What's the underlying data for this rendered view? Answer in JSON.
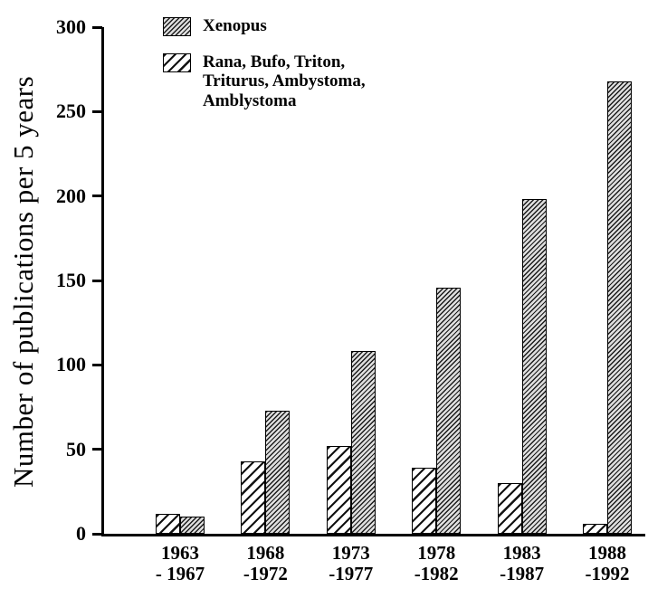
{
  "figure": {
    "y_axis_title": "Number of publications per 5 years"
  },
  "legend": {
    "xenopus_label": "Xenopus",
    "rana_lines": [
      "Rana, Bufo, Triton,",
      "Triturus, Ambystoma,",
      "Amblystoma"
    ]
  },
  "chart_data": {
    "type": "bar",
    "title": "",
    "xlabel": "",
    "ylabel": "Number of publications per 5 years",
    "ylim": [
      0,
      300
    ],
    "yticks": [
      0,
      50,
      100,
      150,
      200,
      250,
      300
    ],
    "grid": false,
    "legend_position": "top-left",
    "categories": [
      "1963\n- 1967",
      "1968\n-1972",
      "1973\n-1977",
      "1978\n-1982",
      "1983\n-1987",
      "1988\n-1992"
    ],
    "series": [
      {
        "name": "Rana, Bufo, Triton, Triturus, Ambystoma, Amblystoma",
        "hatch": "light",
        "values": [
          12,
          43,
          52,
          39,
          30,
          6
        ]
      },
      {
        "name": "Xenopus",
        "hatch": "dense",
        "values": [
          10,
          73,
          108,
          146,
          198,
          268
        ]
      }
    ]
  }
}
